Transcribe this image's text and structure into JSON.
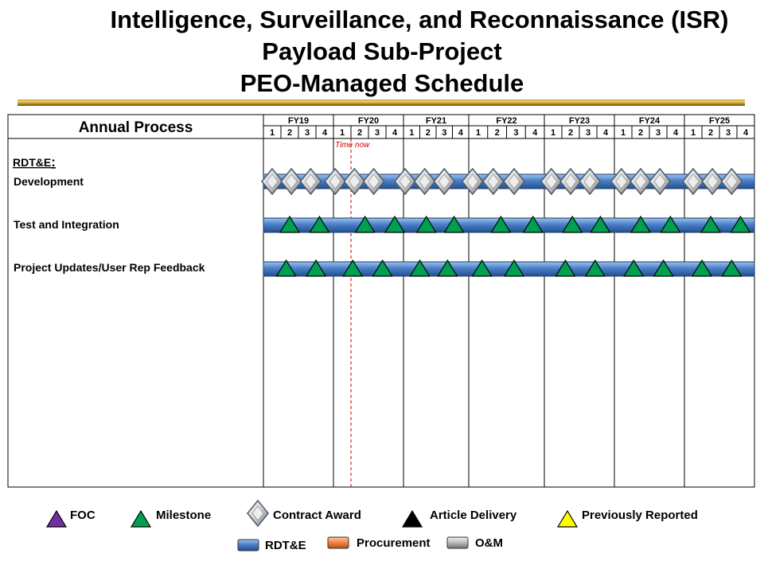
{
  "title": {
    "line1": "Intelligence, Surveillance, and Reconnaissance (ISR)",
    "line2": "Payload Sub-Project",
    "line3": "PEO-Managed Schedule"
  },
  "chart_data": {
    "type": "gantt",
    "header_label": "Annual Process",
    "fiscal_years": [
      "FY19",
      "FY20",
      "FY21",
      "FY22",
      "FY23",
      "FY24",
      "FY25"
    ],
    "quarters": [
      "1",
      "2",
      "3",
      "4"
    ],
    "time_now": {
      "label": "Time now",
      "fy_index": 1,
      "quarter_pos": 0.25
    },
    "section_label": "RDT&E",
    "section_colon": ":",
    "rows": [
      {
        "label": "Development",
        "bar": "RDT&E",
        "bar_start": 0.0,
        "bar_end": 28.0,
        "markers": [
          {
            "type": "Contract Award",
            "t": 0.5
          },
          {
            "type": "Contract Award",
            "t": 1.6
          },
          {
            "type": "Contract Award",
            "t": 2.7
          },
          {
            "type": "Contract Award",
            "t": 4.1
          },
          {
            "type": "Contract Award",
            "t": 5.2
          },
          {
            "type": "Contract Award",
            "t": 6.3
          },
          {
            "type": "Contract Award",
            "t": 8.1
          },
          {
            "type": "Contract Award",
            "t": 9.3
          },
          {
            "type": "Contract Award",
            "t": 10.5
          },
          {
            "type": "Contract Award",
            "t": 12.2
          },
          {
            "type": "Contract Award",
            "t": 13.3
          },
          {
            "type": "Contract Award",
            "t": 14.4
          },
          {
            "type": "Contract Award",
            "t": 16.4
          },
          {
            "type": "Contract Award",
            "t": 17.5
          },
          {
            "type": "Contract Award",
            "t": 18.6
          },
          {
            "type": "Contract Award",
            "t": 20.4
          },
          {
            "type": "Contract Award",
            "t": 21.5
          },
          {
            "type": "Contract Award",
            "t": 22.6
          },
          {
            "type": "Contract Award",
            "t": 24.5
          },
          {
            "type": "Contract Award",
            "t": 25.6
          },
          {
            "type": "Contract Award",
            "t": 26.7
          }
        ]
      },
      {
        "label": "Test and Integration",
        "bar": "RDT&E",
        "bar_start": 0.0,
        "bar_end": 28.0,
        "markers": [
          {
            "type": "Milestone",
            "t": 1.5
          },
          {
            "type": "Milestone",
            "t": 3.2
          },
          {
            "type": "Milestone",
            "t": 5.8
          },
          {
            "type": "Milestone",
            "t": 7.5
          },
          {
            "type": "Milestone",
            "t": 9.4
          },
          {
            "type": "Milestone",
            "t": 11.1
          },
          {
            "type": "Milestone",
            "t": 13.7
          },
          {
            "type": "Milestone",
            "t": 15.4
          },
          {
            "type": "Milestone",
            "t": 17.6
          },
          {
            "type": "Milestone",
            "t": 19.2
          },
          {
            "type": "Milestone",
            "t": 21.5
          },
          {
            "type": "Milestone",
            "t": 23.2
          },
          {
            "type": "Milestone",
            "t": 25.5
          },
          {
            "type": "Milestone",
            "t": 27.2
          }
        ]
      },
      {
        "label": "Project Updates/User Rep Feedback",
        "bar": "RDT&E",
        "bar_start": 0.0,
        "bar_end": 28.0,
        "markers": [
          {
            "type": "Milestone",
            "t": 1.3
          },
          {
            "type": "Milestone",
            "t": 3.0
          },
          {
            "type": "Milestone",
            "t": 5.1
          },
          {
            "type": "Milestone",
            "t": 6.8
          },
          {
            "type": "Milestone",
            "t": 9.0
          },
          {
            "type": "Milestone",
            "t": 10.7
          },
          {
            "type": "Milestone",
            "t": 12.7
          },
          {
            "type": "Milestone",
            "t": 14.4
          },
          {
            "type": "Milestone",
            "t": 17.2
          },
          {
            "type": "Milestone",
            "t": 18.9
          },
          {
            "type": "Milestone",
            "t": 21.1
          },
          {
            "type": "Milestone",
            "t": 22.8
          },
          {
            "type": "Milestone",
            "t": 25.0
          },
          {
            "type": "Milestone",
            "t": 26.7
          }
        ]
      }
    ]
  },
  "legend": {
    "markers": [
      {
        "label": "FOC",
        "shape": "triangle",
        "color": "#7030a0"
      },
      {
        "label": "Milestone",
        "shape": "triangle",
        "color": "#00a050"
      },
      {
        "label": "Contract Award",
        "shape": "diamond",
        "color": "#c0c0c0"
      },
      {
        "label": "Article Delivery",
        "shape": "triangle",
        "color": "#000000"
      },
      {
        "label": "Previously Reported",
        "shape": "triangle",
        "color": "#ffff00"
      }
    ],
    "bars": [
      {
        "label": "RDT&E",
        "color": "#4a80c8"
      },
      {
        "label": "Procurement",
        "color": "#f08040"
      },
      {
        "label": "O&M",
        "color": "#a0a0a0"
      }
    ]
  },
  "colors": {
    "rdte_bar": "#4a80c8",
    "milestone": "#00a050",
    "time_now": "#cc0000",
    "title_rule": "#c8a23a"
  }
}
